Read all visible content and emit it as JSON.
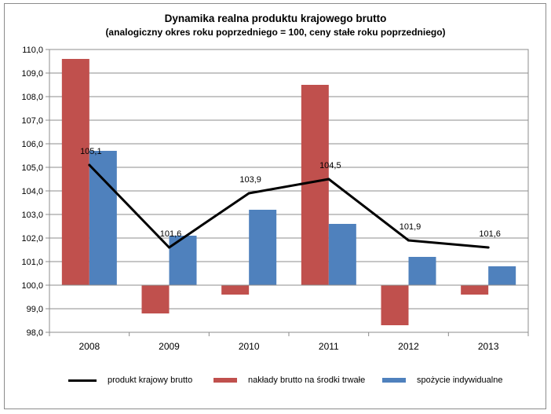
{
  "chart_data": {
    "type": "bar",
    "title": "Dynamika realna produktu krajowego brutto",
    "subtitle": "(analogiczny okres roku poprzedniego = 100, ceny stałe roku poprzedniego)",
    "categories": [
      "2008",
      "2009",
      "2010",
      "2011",
      "2012",
      "2013"
    ],
    "baseline": 100,
    "ylim": [
      98,
      110
    ],
    "yticks": [
      "98,0",
      "99,0",
      "100,0",
      "101,0",
      "102,0",
      "103,0",
      "104,0",
      "105,0",
      "106,0",
      "107,0",
      "108,0",
      "109,0",
      "110,0"
    ],
    "grid": true,
    "legend_position": "bottom",
    "series": [
      {
        "name": "produkt krajowy brutto",
        "kind": "line",
        "color": "#000000",
        "values": [
          105.1,
          101.6,
          103.9,
          104.5,
          101.9,
          101.6
        ],
        "labels": [
          "105,1",
          "101,6",
          "103,9",
          "104,5",
          "101,9",
          "101,6"
        ]
      },
      {
        "name": "nakłady brutto na środki trwałe",
        "kind": "bar",
        "color": "#c0504d",
        "values": [
          109.6,
          98.8,
          99.6,
          108.5,
          98.3,
          99.6
        ]
      },
      {
        "name": "spożycie indywidualne",
        "kind": "bar",
        "color": "#4f81bd",
        "values": [
          105.7,
          102.1,
          103.2,
          102.6,
          101.2,
          100.8
        ]
      }
    ]
  }
}
